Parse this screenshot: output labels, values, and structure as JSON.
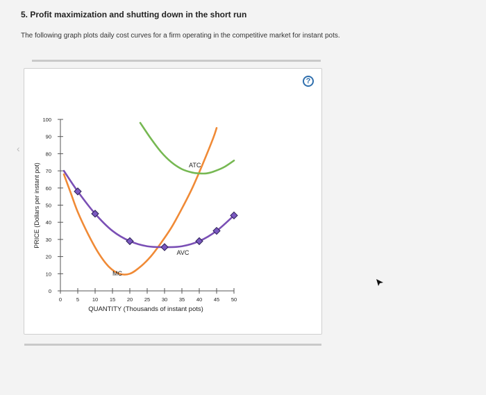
{
  "question": {
    "title": "5. Profit maximization and shutting down in the short run",
    "intro": "The following graph plots daily cost curves for a firm operating in the competitive market for instant pots."
  },
  "help": {
    "label": "?"
  },
  "colors": {
    "mc": "#f08a36",
    "atc": "#76b852",
    "avc": "#7a4fb5",
    "marker": "#7a58c0"
  },
  "chart_data": {
    "type": "line",
    "xlabel": "QUANTITY (Thousands of instant pots)",
    "ylabel": "PRICE (Dollars per instant pot)",
    "xlim": [
      0,
      50
    ],
    "ylim": [
      0,
      100
    ],
    "x_ticks": [
      0,
      5,
      10,
      15,
      20,
      25,
      30,
      35,
      40,
      45,
      50
    ],
    "y_ticks": [
      0,
      10,
      20,
      30,
      40,
      50,
      60,
      70,
      80,
      90,
      100
    ],
    "series": [
      {
        "name": "MC",
        "color": "#f08a36",
        "points": [
          [
            1,
            68
          ],
          [
            3,
            57
          ],
          [
            5,
            46
          ],
          [
            8,
            33
          ],
          [
            11,
            22
          ],
          [
            14,
            14
          ],
          [
            17,
            10
          ],
          [
            20,
            10
          ],
          [
            23,
            14
          ],
          [
            26,
            20
          ],
          [
            29,
            28
          ],
          [
            32,
            37
          ],
          [
            35,
            48
          ],
          [
            38,
            60
          ],
          [
            41,
            74
          ],
          [
            44,
            89
          ],
          [
            45,
            95
          ]
        ]
      },
      {
        "name": "ATC",
        "color": "#76b852",
        "points": [
          [
            23,
            98
          ],
          [
            26,
            89
          ],
          [
            29,
            81
          ],
          [
            32,
            75
          ],
          [
            35,
            71
          ],
          [
            38,
            69
          ],
          [
            40,
            68.5
          ],
          [
            42,
            68.5
          ],
          [
            44,
            69.5
          ],
          [
            47,
            72
          ],
          [
            50,
            76
          ]
        ]
      },
      {
        "name": "AVC",
        "color": "#7a4fb5",
        "points": [
          [
            1,
            70
          ],
          [
            5,
            58
          ],
          [
            10,
            45
          ],
          [
            15,
            35
          ],
          [
            20,
            29
          ],
          [
            25,
            26
          ],
          [
            30,
            25.5
          ],
          [
            35,
            26
          ],
          [
            40,
            29
          ],
          [
            45,
            35
          ],
          [
            50,
            44
          ]
        ],
        "markers": [
          [
            5,
            58
          ],
          [
            10,
            45
          ],
          [
            20,
            29
          ],
          [
            30,
            25.5
          ],
          [
            40,
            29
          ],
          [
            45,
            35
          ],
          [
            50,
            44
          ]
        ]
      }
    ],
    "labels": [
      {
        "text": "ATC",
        "x": 37,
        "y": 72
      },
      {
        "text": "AVC",
        "x": 33.5,
        "y": 21
      },
      {
        "text": "MC",
        "x": 15,
        "y": 9
      }
    ]
  }
}
